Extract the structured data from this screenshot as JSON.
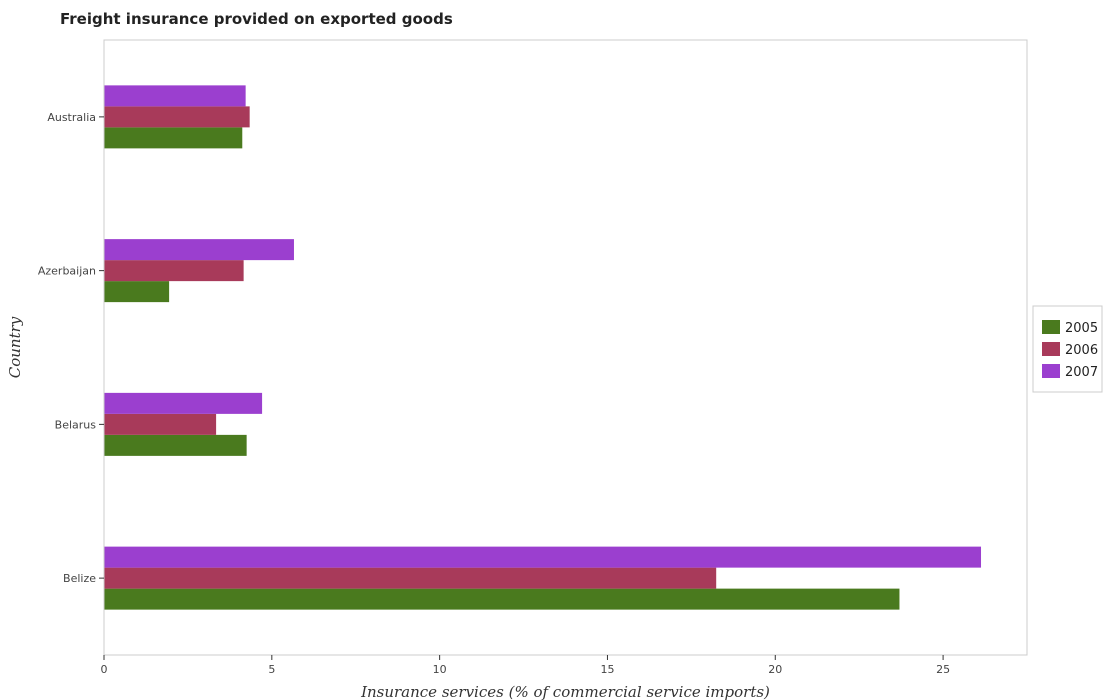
{
  "chart_data": {
    "type": "bar",
    "orientation": "horizontal",
    "title": "Freight insurance provided on exported goods",
    "xlabel": "Insurance services (% of commercial service imports)",
    "ylabel": "Country",
    "categories": [
      "Australia",
      "Azerbaijan",
      "Belarus",
      "Belize"
    ],
    "xlim": [
      0,
      27.5
    ],
    "xticks": [
      0,
      5,
      10,
      15,
      20,
      25
    ],
    "xtick_labels": [
      "0",
      "5",
      "10",
      "15",
      "20",
      "25"
    ],
    "grid": false,
    "legend_position": "right",
    "series": [
      {
        "name": "2005",
        "color": "#4a7a1e",
        "values": [
          4.12,
          1.94,
          4.25,
          23.7
        ]
      },
      {
        "name": "2006",
        "color": "#a83a5a",
        "values": [
          4.34,
          4.16,
          3.34,
          18.24
        ]
      },
      {
        "name": "2007",
        "color": "#9b3fcf",
        "values": [
          4.22,
          5.66,
          4.71,
          26.13
        ]
      }
    ]
  }
}
